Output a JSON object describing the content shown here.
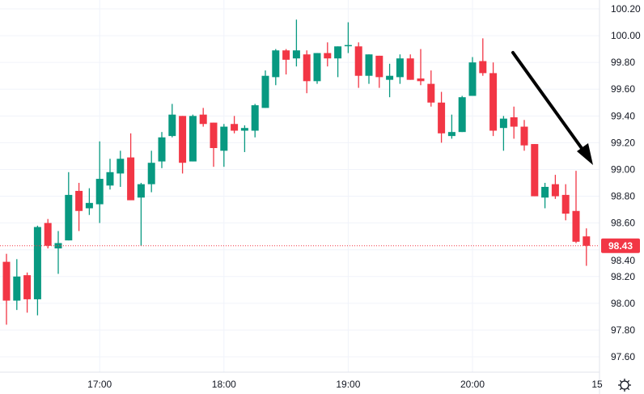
{
  "chart_data": {
    "type": "candlestick",
    "title": "",
    "xlabel": "",
    "ylabel": "",
    "interval_minutes": 5,
    "ylim": [
      97.5,
      100.27
    ],
    "grid": true,
    "y_ticks": [
      "100.20",
      "100.00",
      "99.80",
      "99.60",
      "99.40",
      "99.20",
      "99.00",
      "98.80",
      "98.60",
      "98.40",
      "98.20",
      "98.00",
      "97.80",
      "97.60"
    ],
    "x_ticks": [
      "17:00",
      "18:00",
      "19:00",
      "20:00",
      "15"
    ],
    "last_price": "98.43",
    "colors": {
      "up": "#089981",
      "down": "#f23645",
      "grid": "#f0f3fa",
      "annotation_arrow": "#000000"
    },
    "annotation": "arrow pointing down from about 20:15 / 99.87 to about 20:55 / 99.03",
    "columns": [
      "time",
      "open",
      "high",
      "low",
      "close"
    ],
    "candles": [
      [
        "16:15",
        98.31,
        98.37,
        97.84,
        98.02
      ],
      [
        "16:20",
        98.02,
        98.33,
        97.95,
        98.2
      ],
      [
        "16:25",
        98.21,
        98.23,
        97.93,
        98.03
      ],
      [
        "16:30",
        98.03,
        98.58,
        97.91,
        98.57
      ],
      [
        "16:35",
        98.6,
        98.63,
        98.41,
        98.43
      ],
      [
        "16:40",
        98.41,
        98.54,
        98.22,
        98.45
      ],
      [
        "16:45",
        98.47,
        98.98,
        98.47,
        98.81
      ],
      [
        "16:50",
        98.84,
        98.9,
        98.54,
        98.69
      ],
      [
        "16:55",
        98.71,
        98.86,
        98.66,
        98.75
      ],
      [
        "17:00",
        98.74,
        99.21,
        98.6,
        98.93
      ],
      [
        "17:05",
        98.88,
        99.08,
        98.85,
        98.98
      ],
      [
        "17:10",
        98.97,
        99.14,
        98.87,
        99.08
      ],
      [
        "17:15",
        99.09,
        99.27,
        98.77,
        98.77
      ],
      [
        "17:20",
        98.79,
        98.9,
        98.43,
        98.89
      ],
      [
        "17:25",
        98.89,
        99.14,
        98.83,
        99.05
      ],
      [
        "17:30",
        99.06,
        99.28,
        99.01,
        99.24
      ],
      [
        "17:35",
        99.25,
        99.49,
        99.24,
        99.41
      ],
      [
        "17:40",
        99.4,
        99.4,
        98.97,
        99.05
      ],
      [
        "17:45",
        99.06,
        99.41,
        99.06,
        99.4
      ],
      [
        "17:50",
        99.41,
        99.46,
        99.32,
        99.34
      ],
      [
        "17:55",
        99.35,
        99.35,
        99.02,
        99.16
      ],
      [
        "18:00",
        99.14,
        99.34,
        99.02,
        99.32
      ],
      [
        "18:05",
        99.34,
        99.4,
        99.27,
        99.29
      ],
      [
        "18:10",
        99.29,
        99.33,
        99.13,
        99.31
      ],
      [
        "18:15",
        99.29,
        99.49,
        99.24,
        99.48
      ],
      [
        "18:20",
        99.46,
        99.74,
        99.46,
        99.7
      ],
      [
        "18:25",
        99.69,
        99.9,
        99.63,
        99.89
      ],
      [
        "18:30",
        99.89,
        99.9,
        99.71,
        99.82
      ],
      [
        "18:35",
        99.83,
        100.12,
        99.77,
        99.89
      ],
      [
        "18:40",
        99.86,
        99.89,
        99.57,
        99.66
      ],
      [
        "18:45",
        99.66,
        99.87,
        99.64,
        99.87
      ],
      [
        "18:50",
        99.87,
        99.95,
        99.77,
        99.83
      ],
      [
        "18:55",
        99.83,
        99.92,
        99.69,
        99.92
      ],
      [
        "19:00",
        99.93,
        100.1,
        99.87,
        99.93
      ],
      [
        "19:05",
        99.92,
        99.95,
        99.61,
        99.7
      ],
      [
        "19:10",
        99.7,
        99.86,
        99.64,
        99.86
      ],
      [
        "19:15",
        99.85,
        99.85,
        99.61,
        99.69
      ],
      [
        "19:20",
        99.67,
        99.79,
        99.54,
        99.7
      ],
      [
        "19:25",
        99.69,
        99.86,
        99.64,
        99.83
      ],
      [
        "19:30",
        99.83,
        99.86,
        99.67,
        99.67
      ],
      [
        "19:35",
        99.68,
        99.9,
        99.63,
        99.66
      ],
      [
        "19:40",
        99.64,
        99.74,
        99.47,
        99.5
      ],
      [
        "19:45",
        99.5,
        99.58,
        99.2,
        99.27
      ],
      [
        "19:50",
        99.25,
        99.41,
        99.23,
        99.28
      ],
      [
        "19:55",
        99.28,
        99.55,
        99.28,
        99.54
      ],
      [
        "20:00",
        99.55,
        99.84,
        99.55,
        99.8
      ],
      [
        "20:05",
        99.81,
        99.98,
        99.7,
        99.72
      ],
      [
        "20:10",
        99.72,
        99.8,
        99.25,
        99.29
      ],
      [
        "20:15",
        99.31,
        99.4,
        99.14,
        99.38
      ],
      [
        "20:20",
        99.39,
        99.47,
        99.23,
        99.32
      ],
      [
        "20:25",
        99.32,
        99.37,
        99.14,
        99.18
      ],
      [
        "20:30",
        99.19,
        99.19,
        98.8,
        98.8
      ],
      [
        "20:35",
        98.79,
        98.9,
        98.71,
        98.87
      ],
      [
        "20:40",
        98.89,
        98.96,
        98.78,
        98.8
      ],
      [
        "20:45",
        98.81,
        98.89,
        98.62,
        98.67
      ],
      [
        "20:50",
        98.69,
        98.99,
        98.45,
        98.46
      ],
      [
        "20:55",
        98.5,
        98.56,
        98.28,
        98.43
      ]
    ]
  },
  "settings_icon": "gear-icon"
}
